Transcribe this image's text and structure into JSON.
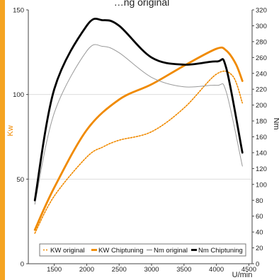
{
  "chart_data": {
    "type": "line",
    "title": "…ng original",
    "xlabel": "U/min",
    "ylabel_left": "Kw",
    "ylabel_right": "Nm",
    "xlim": [
      1100,
      4550
    ],
    "ylim_left": [
      0,
      150
    ],
    "ylim_right": [
      0,
      320
    ],
    "x_ticks": [
      1500,
      2000,
      2500,
      3000,
      3500,
      4000,
      4500
    ],
    "y_left_ticks": [
      0,
      50,
      100,
      150
    ],
    "y_right_ticks": [
      0,
      20,
      40,
      60,
      80,
      100,
      120,
      140,
      160,
      180,
      200,
      220,
      240,
      260,
      280,
      300,
      320
    ],
    "grid": "horizontal",
    "legend_position": "bottom",
    "series": [
      {
        "name": "KW original",
        "axis": "left",
        "color": "#f08a00",
        "style": "dotted",
        "x": [
          1200,
          1500,
          2000,
          2250,
          2500,
          3000,
          3500,
          4000,
          4250,
          4400
        ],
        "y": [
          18,
          40,
          63,
          69,
          73,
          78,
          92,
          112,
          111,
          95
        ]
      },
      {
        "name": "KW Chiptuning",
        "axis": "left",
        "color": "#f08a00",
        "style": "solid-thick",
        "x": [
          1200,
          1500,
          2000,
          2500,
          3000,
          3500,
          4000,
          4150,
          4300,
          4400
        ],
        "y": [
          20,
          45,
          79,
          97,
          106,
          117,
          127,
          126,
          118,
          108
        ]
      },
      {
        "name": "Nm original",
        "axis": "right",
        "color": "#999999",
        "style": "solid-thin",
        "x": [
          1200,
          1500,
          2000,
          2250,
          2500,
          3000,
          3500,
          4000,
          4150,
          4400
        ],
        "y": [
          75,
          190,
          268,
          274,
          266,
          235,
          223,
          225,
          217,
          123
        ]
      },
      {
        "name": "Nm Chiptuning",
        "axis": "right",
        "color": "#000000",
        "style": "solid-thick",
        "x": [
          1200,
          1500,
          2000,
          2250,
          2500,
          3000,
          3500,
          4000,
          4150,
          4400
        ],
        "y": [
          80,
          220,
          300,
          307,
          300,
          260,
          251,
          255,
          247,
          140
        ]
      }
    ]
  }
}
